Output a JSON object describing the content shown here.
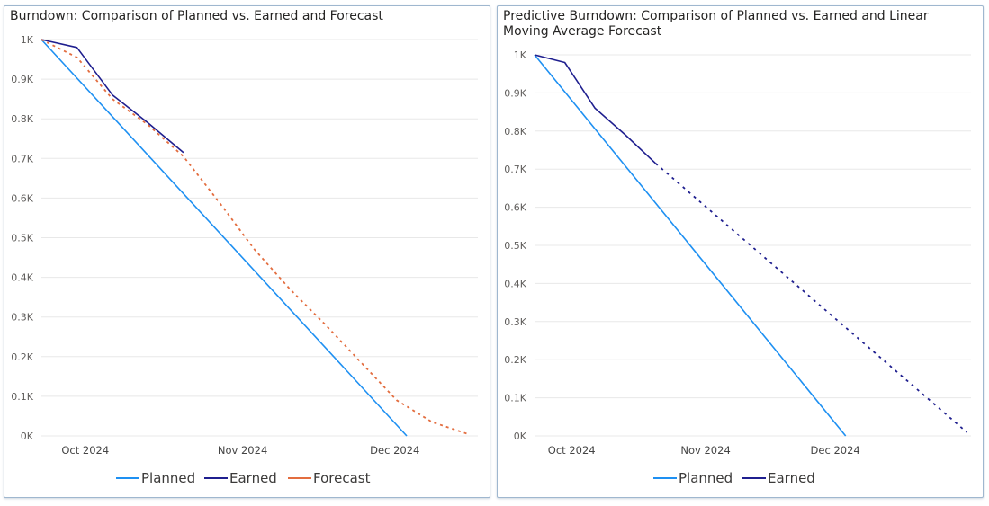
{
  "chart_data": [
    {
      "type": "line",
      "title": "Burndown: Comparison of Planned vs. Earned and Forecast",
      "ylim": [
        0,
        1000
      ],
      "y_ticks": [
        0,
        100,
        200,
        300,
        400,
        500,
        600,
        700,
        800,
        900,
        1000
      ],
      "y_tick_labels": [
        "0K",
        "0.1K",
        "0.2K",
        "0.3K",
        "0.4K",
        "0.5K",
        "0.6K",
        "0.7K",
        "0.8K",
        "0.9K",
        "1K"
      ],
      "xlim": [
        "2024-09-22",
        "2024-12-17"
      ],
      "x_ticks": [
        "2024-10-01",
        "2024-11-01",
        "2024-12-01"
      ],
      "x_tick_labels": [
        "Oct 2024",
        "Nov 2024",
        "Dec 2024"
      ],
      "grid": true,
      "legend": "bottom-center",
      "series": [
        {
          "name": "Planned",
          "color": "#1e90f2",
          "style": "solid",
          "points": [
            [
              "2024-09-22",
              1000
            ],
            [
              "2024-12-03",
              0
            ]
          ]
        },
        {
          "name": "Earned",
          "color": "#1f1f8f",
          "style": "solid",
          "points": [
            [
              "2024-09-22",
              1000
            ],
            [
              "2024-09-29",
              980
            ],
            [
              "2024-10-06",
              860
            ],
            [
              "2024-10-13",
              790
            ],
            [
              "2024-10-20",
              715
            ]
          ]
        },
        {
          "name": "Forecast",
          "color": "#e36d3f",
          "style": "dashed",
          "points": [
            [
              "2024-09-22",
              1000
            ],
            [
              "2024-09-29",
              955
            ],
            [
              "2024-10-06",
              850
            ],
            [
              "2024-10-13",
              785
            ],
            [
              "2024-10-20",
              705
            ],
            [
              "2024-10-27",
              590
            ],
            [
              "2024-11-03",
              470
            ],
            [
              "2024-11-10",
              370
            ],
            [
              "2024-11-17",
              280
            ],
            [
              "2024-11-24",
              185
            ],
            [
              "2024-12-01",
              90
            ],
            [
              "2024-12-08",
              35
            ],
            [
              "2024-12-15",
              5
            ]
          ]
        }
      ]
    },
    {
      "type": "line",
      "title": "Predictive Burndown: Comparison of Planned vs. Earned and Linear Moving Average Forecast",
      "ylim": [
        0,
        1000
      ],
      "y_ticks": [
        0,
        100,
        200,
        300,
        400,
        500,
        600,
        700,
        800,
        900,
        1000
      ],
      "y_tick_labels": [
        "0K",
        "0.1K",
        "0.2K",
        "0.3K",
        "0.4K",
        "0.5K",
        "0.6K",
        "0.7K",
        "0.8K",
        "0.9K",
        "1K"
      ],
      "xlim": [
        "2024-09-22",
        "2025-01-01"
      ],
      "x_ticks": [
        "2024-10-01",
        "2024-11-01",
        "2024-12-01"
      ],
      "x_tick_labels": [
        "Oct 2024",
        "Nov 2024",
        "Dec 2024"
      ],
      "grid": true,
      "legend": "bottom-center",
      "series": [
        {
          "name": "Planned",
          "color": "#1e90f2",
          "style": "solid",
          "points": [
            [
              "2024-09-22",
              1000
            ],
            [
              "2024-12-03",
              0
            ]
          ]
        },
        {
          "name": "Earned",
          "color": "#1f1f8f",
          "style": "solid",
          "points": [
            [
              "2024-09-22",
              1000
            ],
            [
              "2024-09-29",
              980
            ],
            [
              "2024-10-06",
              860
            ],
            [
              "2024-10-13",
              790
            ],
            [
              "2024-10-20",
              715
            ]
          ],
          "forecast_style": "dotted",
          "forecast_points": [
            [
              "2024-10-20",
              715
            ],
            [
              "2024-12-31",
              10
            ]
          ]
        }
      ]
    }
  ]
}
